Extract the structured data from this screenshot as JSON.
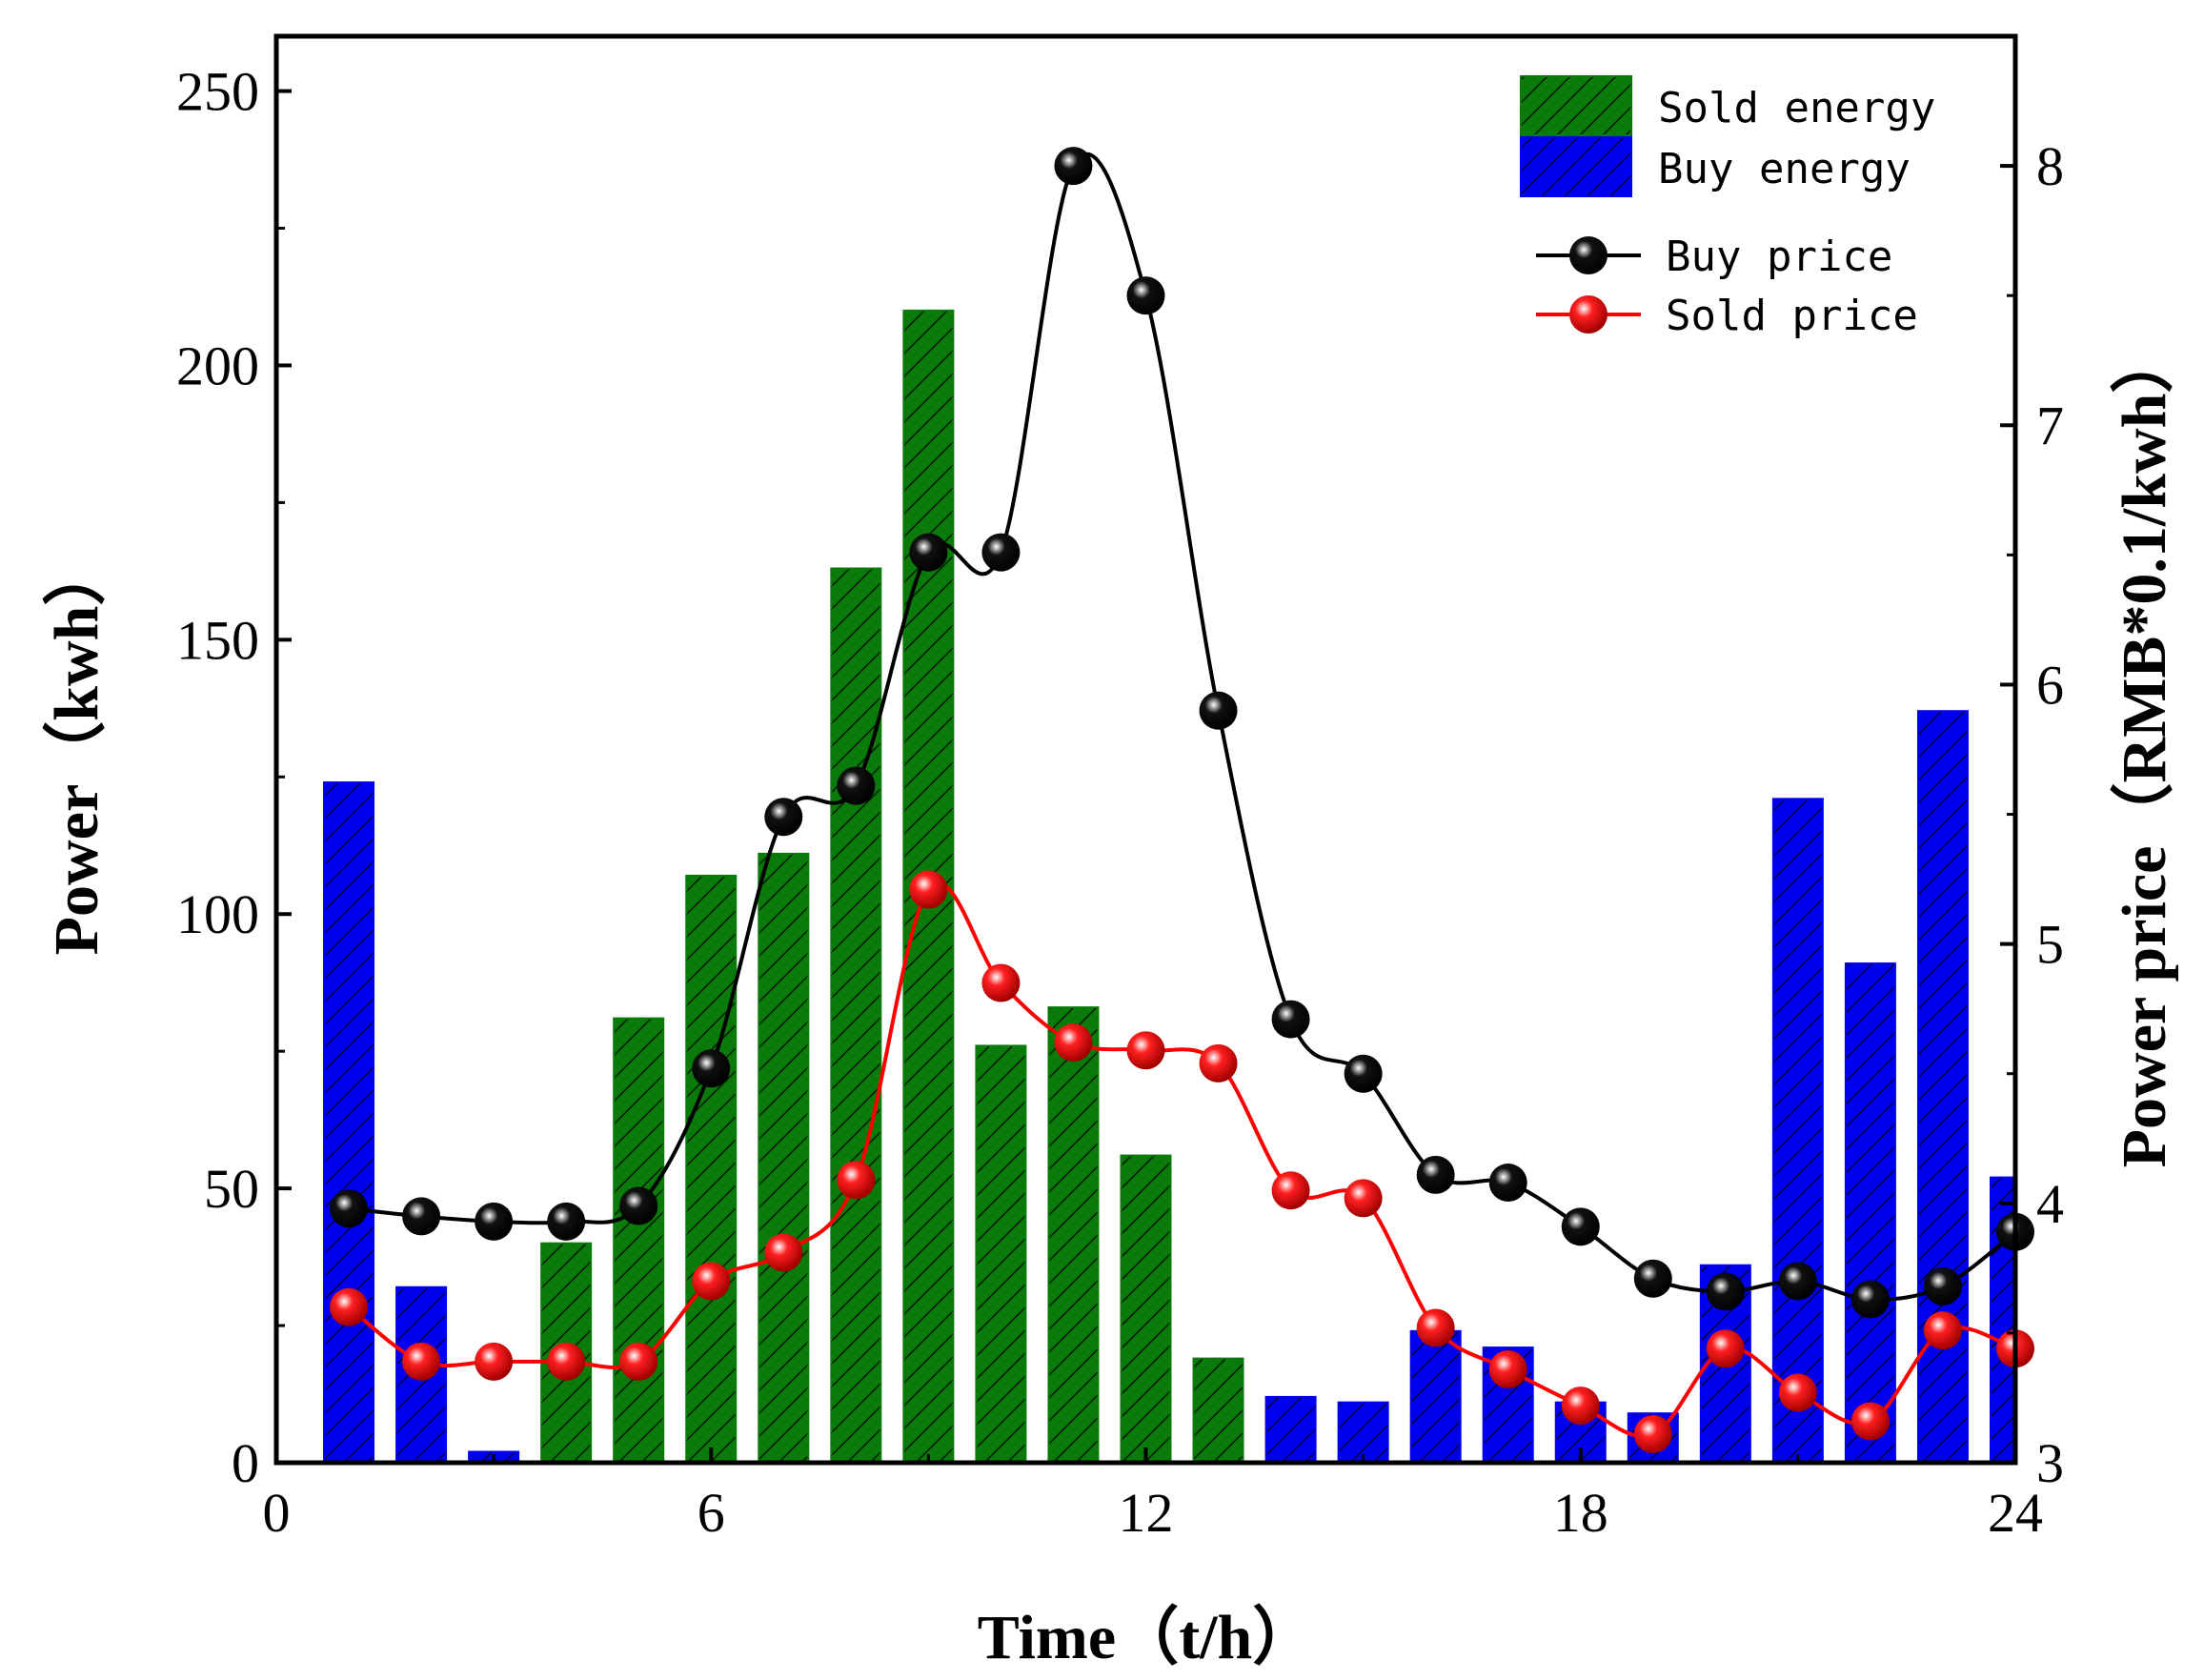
{
  "chart_data": {
    "type": "bar+line",
    "title": "",
    "xlabel": "Time（t/h）",
    "ylabel_left": "Power（kwh）",
    "ylabel_right": "Power price（RMB*0.1/kwh）",
    "xlim": [
      0,
      24
    ],
    "ylim_left": [
      0,
      260
    ],
    "ylim_right": [
      3,
      8.5
    ],
    "x_ticks": [
      0,
      6,
      12,
      18,
      24
    ],
    "y_left_ticks": [
      0,
      50,
      100,
      150,
      200,
      250
    ],
    "y_right_ticks": [
      3,
      4,
      5,
      6,
      7,
      8
    ],
    "legend_position": "top-right",
    "series": [
      {
        "name": "Sold energy",
        "kind": "bar",
        "color": "#0a7a0a",
        "points": [
          [
            4,
            40
          ],
          [
            5,
            81
          ],
          [
            6,
            107
          ],
          [
            7,
            111
          ],
          [
            8,
            163
          ],
          [
            9,
            210
          ],
          [
            10,
            76
          ],
          [
            11,
            83
          ],
          [
            12,
            56
          ],
          [
            13,
            19
          ]
        ]
      },
      {
        "name": "Buy energy",
        "kind": "bar",
        "color": "#0000f0",
        "points": [
          [
            1,
            124
          ],
          [
            2,
            32
          ],
          [
            3,
            2
          ],
          [
            14,
            12
          ],
          [
            15,
            11
          ],
          [
            16,
            24
          ],
          [
            17,
            21
          ],
          [
            18,
            11
          ],
          [
            19,
            9
          ],
          [
            20,
            36
          ],
          [
            21,
            121
          ],
          [
            22,
            91
          ],
          [
            23,
            137
          ],
          [
            24,
            52
          ]
        ]
      },
      {
        "name": "Buy price",
        "kind": "line",
        "axis": "right",
        "color": "#000000",
        "marker_color": "#111111",
        "points": [
          [
            1,
            3.98
          ],
          [
            2,
            3.95
          ],
          [
            3,
            3.93
          ],
          [
            4,
            3.93
          ],
          [
            5,
            3.99
          ],
          [
            6,
            4.52
          ],
          [
            7,
            5.49
          ],
          [
            8,
            5.61
          ],
          [
            9,
            6.51
          ],
          [
            10,
            6.51
          ],
          [
            11,
            8.0
          ],
          [
            12,
            7.5
          ],
          [
            13,
            5.9
          ],
          [
            14,
            4.71
          ],
          [
            15,
            4.5
          ],
          [
            16,
            4.11
          ],
          [
            17,
            4.08
          ],
          [
            18,
            3.91
          ],
          [
            19,
            3.71
          ],
          [
            20,
            3.66
          ],
          [
            21,
            3.7
          ],
          [
            22,
            3.63
          ],
          [
            23,
            3.68
          ],
          [
            24,
            3.89
          ]
        ]
      },
      {
        "name": "Sold price",
        "kind": "line",
        "axis": "right",
        "color": "#ff0000",
        "marker_color": "#ff1f1f",
        "points": [
          [
            1,
            3.6
          ],
          [
            2,
            3.39
          ],
          [
            3,
            3.39
          ],
          [
            4,
            3.39
          ],
          [
            5,
            3.39
          ],
          [
            6,
            3.7
          ],
          [
            7,
            3.81
          ],
          [
            8,
            4.09
          ],
          [
            9,
            5.21
          ],
          [
            10,
            4.85
          ],
          [
            11,
            4.62
          ],
          [
            12,
            4.59
          ],
          [
            13,
            4.54
          ],
          [
            14,
            4.05
          ],
          [
            15,
            4.02
          ],
          [
            16,
            3.52
          ],
          [
            17,
            3.36
          ],
          [
            18,
            3.22
          ],
          [
            19,
            3.11
          ],
          [
            20,
            3.44
          ],
          [
            21,
            3.27
          ],
          [
            22,
            3.16
          ],
          [
            23,
            3.51
          ],
          [
            24,
            3.44
          ]
        ]
      }
    ]
  }
}
